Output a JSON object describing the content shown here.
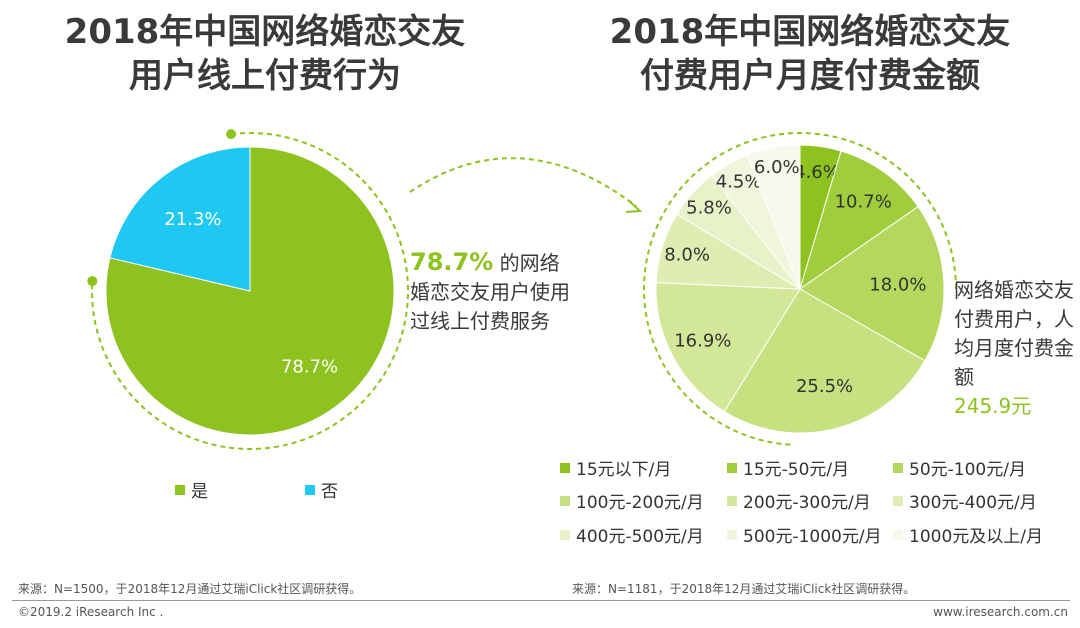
{
  "titles": {
    "left_line1": "2018年中国网络婚恋交友",
    "left_line2": "用户线上付费行为",
    "right_line1": "2018年中国网络婚恋交友",
    "right_line2": "付费用户月度付费金额"
  },
  "chart_data": [
    {
      "type": "pie",
      "title": "2018年中国网络婚恋交友用户线上付费行为",
      "categories": [
        "是",
        "否"
      ],
      "values": [
        78.7,
        21.3
      ],
      "labels": [
        "78.7%",
        "21.3%"
      ],
      "colors": [
        "#8dc21f",
        "#1ec8f2"
      ],
      "legend": "bottom"
    },
    {
      "type": "pie",
      "title": "2018年中国网络婚恋交友付费用户月度付费金额",
      "categories": [
        "15元以下/月",
        "15元-50元/月",
        "50元-100元/月",
        "100元-200元/月",
        "200元-300元/月",
        "300元-400元/月",
        "400元-500元/月",
        "500元-1000元/月",
        "1000元及以上/月"
      ],
      "values": [
        4.6,
        10.7,
        18.0,
        25.5,
        16.9,
        8.0,
        5.8,
        4.5,
        6.0
      ],
      "labels": [
        "4.6%",
        "10.7%",
        "18.0%",
        "25.5%",
        "16.9%",
        "8.0%",
        "5.8%",
        "4.5%",
        "6.0%"
      ],
      "colors": [
        "#8dc21f",
        "#a0cd3c",
        "#b4d85e",
        "#c6e17f",
        "#d3e799",
        "#dfedb2",
        "#e8f2c8",
        "#f0f6db",
        "#f6f9ec"
      ],
      "legend": "bottom"
    }
  ],
  "callout_left": {
    "pct": "78.7%",
    "text": "的网络婚恋交友用户使用过线上付费服务"
  },
  "callout_right": {
    "text": "网络婚恋交友付费用户，人均月度付费金额",
    "amount": "245.9元"
  },
  "footer": {
    "source_left": "来源：N=1500，于2018年12月通过艾瑞iClick社区调研获得。",
    "source_right": "来源：N=1181，于2018年12月通过艾瑞iClick社区调研获得。",
    "copyright": "©2019.2 iResearch Inc .",
    "website": "www.iresearch.com.cn"
  }
}
